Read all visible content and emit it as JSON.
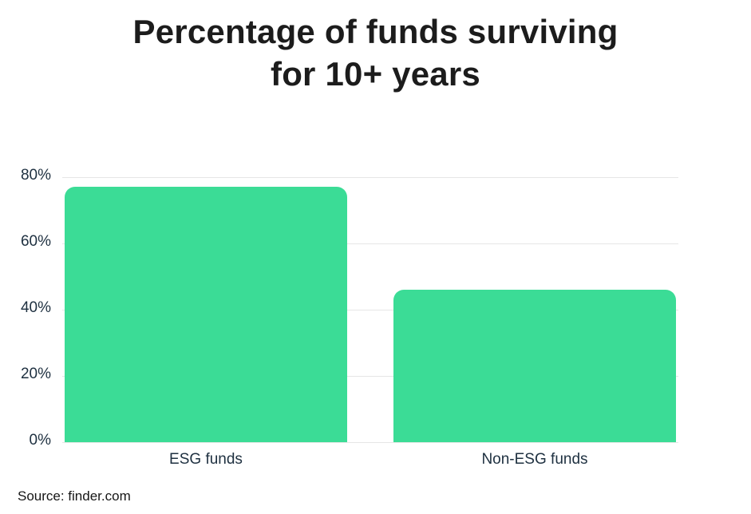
{
  "page": {
    "background_color": "#ffffff"
  },
  "title": "Percentage of funds surviving for 10+ years",
  "source_note": "Source: finder.com",
  "colors": {
    "bar": "#3BDC96",
    "gridline": "#E6E6E6",
    "axis_text": "#1E3040",
    "title_text": "#1C1C1C",
    "source_text": "#161616"
  },
  "chart_data": {
    "type": "bar",
    "title": "Percentage of funds surviving for 10+ years",
    "categories": [
      "ESG funds",
      "Non-ESG funds"
    ],
    "values": [
      77,
      46
    ],
    "xlabel": "",
    "ylabel": "",
    "ylim": [
      0,
      80
    ],
    "yticks": [
      {
        "label": "80%",
        "value": 80
      },
      {
        "label": "60%",
        "value": 60
      },
      {
        "label": "40%",
        "value": 40
      },
      {
        "label": "20%",
        "value": 20
      },
      {
        "label": "0%",
        "value": 0
      }
    ],
    "grid": true,
    "gridlines_horizontal": true,
    "legend": false,
    "bar_color": "#3BDC96",
    "source": "Source: finder.com"
  }
}
